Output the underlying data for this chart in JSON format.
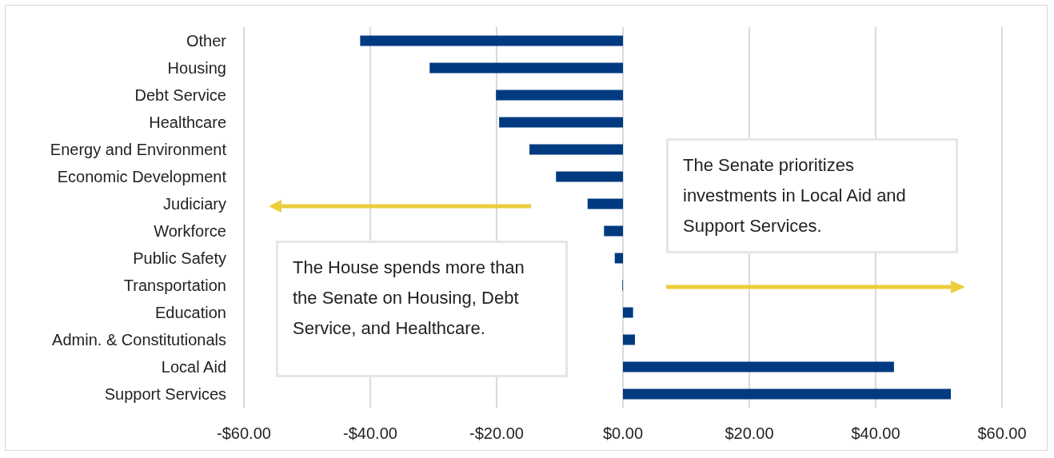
{
  "chart_data": {
    "type": "bar",
    "orientation": "horizontal",
    "categories": [
      "Other",
      "Housing",
      "Debt Service",
      "Healthcare",
      "Energy and Environment",
      "Economic Development",
      "Judiciary",
      "Workforce",
      "Public Safety",
      "Transportation",
      "Education",
      "Admin. & Constitutionals",
      "Local Aid",
      "Support Services"
    ],
    "values": [
      -41.6,
      -30.6,
      -20.1,
      -19.6,
      -14.8,
      -10.6,
      -5.6,
      -3.0,
      -1.3,
      -0.1,
      1.6,
      1.9,
      42.9,
      51.9
    ],
    "color": "#003a80",
    "xlim": [
      -60,
      60
    ],
    "xticks": [
      {
        "value": -60,
        "label": "-$60.00"
      },
      {
        "value": -40,
        "label": "-$40.00"
      },
      {
        "value": -20,
        "label": "-$20.00"
      },
      {
        "value": 0,
        "label": "$0.00"
      },
      {
        "value": 20,
        "label": "$20.00"
      },
      {
        "value": 40,
        "label": "$40.00"
      },
      {
        "value": 60,
        "label": "$60.00"
      }
    ],
    "grid": "x",
    "annotations": [
      "The Senate prioritizes investments in Local Aid and Support Services.",
      "The House spends more than the Senate on Housing, Debt Service, and Healthcare."
    ]
  }
}
